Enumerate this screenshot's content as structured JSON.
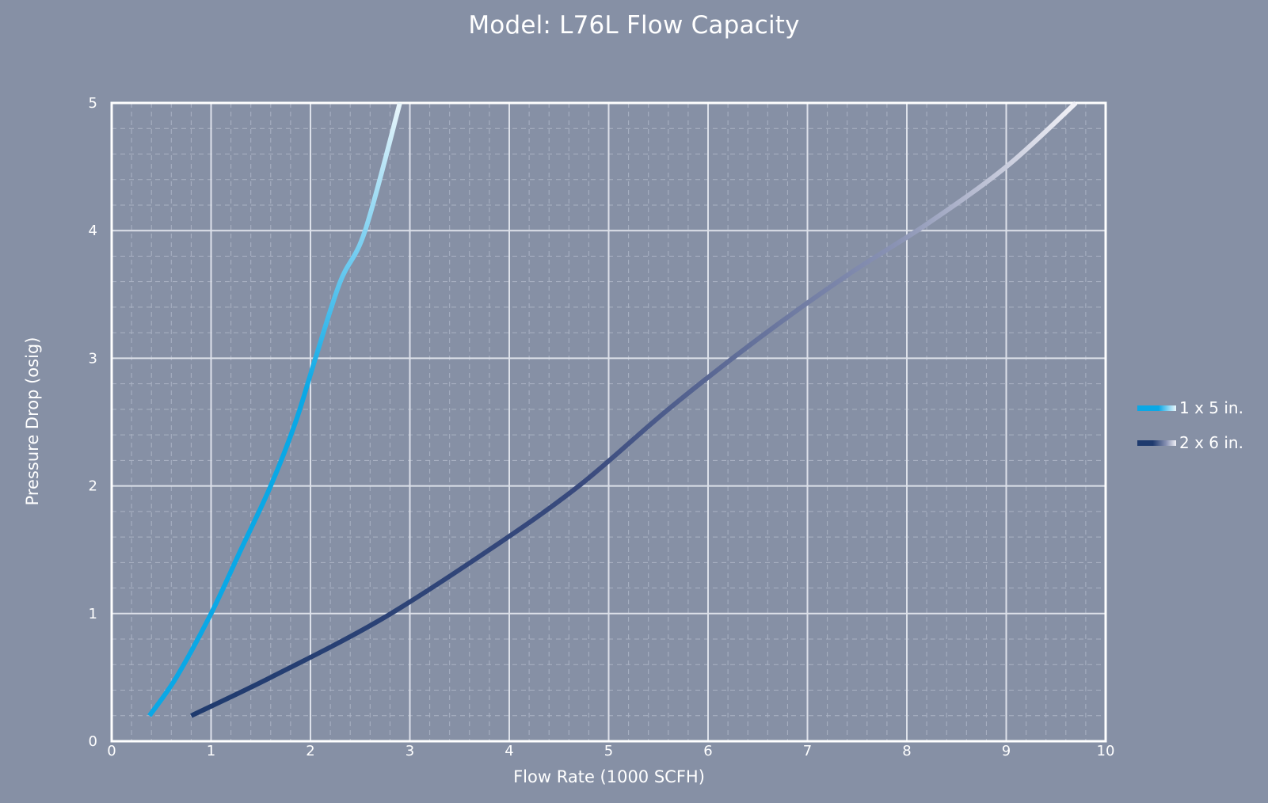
{
  "chart_data": {
    "type": "line",
    "title": "Model: L76L Flow Capacity",
    "xlabel": "Flow Rate (1000 SCFH)",
    "ylabel": "Pressure Drop (osig)",
    "xlim": [
      0,
      10
    ],
    "ylim": [
      0,
      5
    ],
    "x_ticks": [
      "0",
      "1",
      "2",
      "3",
      "4",
      "5",
      "6",
      "7",
      "8",
      "9",
      "10"
    ],
    "y_ticks": [
      "0",
      "1",
      "2",
      "3",
      "4",
      "5"
    ],
    "grid": true,
    "legend_position": "right",
    "series": [
      {
        "name": "1 x 5 in.",
        "color": "#0aa8e6",
        "fade_color": "#eaf6fb",
        "x": [
          0.38,
          0.65,
          1.0,
          1.3,
          1.6,
          1.85,
          2.05,
          2.3,
          2.55,
          2.9
        ],
        "y": [
          0.2,
          0.5,
          1.0,
          1.5,
          2.0,
          2.5,
          3.0,
          3.6,
          4.0,
          5.0
        ]
      },
      {
        "name": "2 x 6 in.",
        "color": "#1e3a6e",
        "fade_color": "#f0f0f6",
        "x": [
          0.8,
          1.6,
          2.7,
          3.8,
          4.7,
          5.6,
          6.5,
          7.4,
          8.2,
          9.0,
          9.7
        ],
        "y": [
          0.2,
          0.5,
          0.95,
          1.5,
          2.0,
          2.6,
          3.15,
          3.65,
          4.05,
          4.5,
          5.0
        ]
      }
    ]
  }
}
